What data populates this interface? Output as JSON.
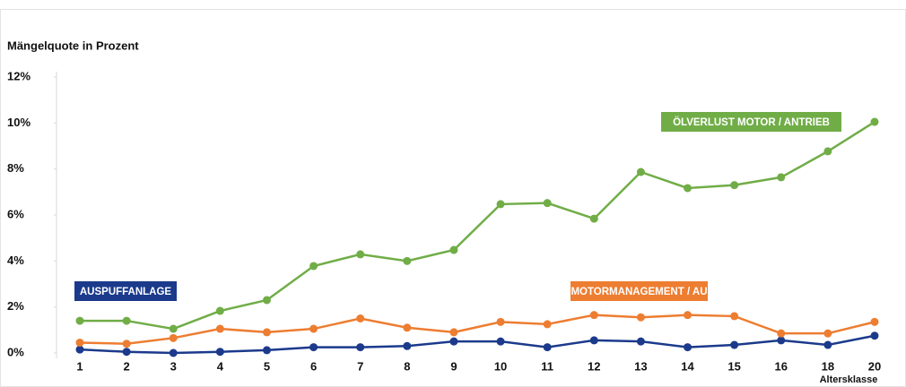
{
  "chart_data": {
    "type": "line",
    "title": "Mängelquote in Prozent",
    "x_label": "Altersklasse",
    "categories": [
      "1",
      "2",
      "3",
      "4",
      "5",
      "6",
      "7",
      "8",
      "9",
      "10",
      "11",
      "12",
      "13",
      "14",
      "15",
      "16",
      "18",
      "20"
    ],
    "ylim": [
      0,
      12
    ],
    "yticks": [
      {
        "value": 0,
        "label": "0%"
      },
      {
        "value": 2,
        "label": "2%"
      },
      {
        "value": 4,
        "label": "4%"
      },
      {
        "value": 6,
        "label": "6%"
      },
      {
        "value": 8,
        "label": "8%"
      },
      {
        "value": 10,
        "label": "10%"
      },
      {
        "value": 12,
        "label": "12%"
      }
    ],
    "grid": false,
    "series": [
      {
        "name": "AUSPUFFANLAGE",
        "color": "#1b3a8c",
        "values": [
          0.15,
          0.05,
          0.0,
          0.05,
          0.12,
          0.25,
          0.25,
          0.3,
          0.5,
          0.5,
          0.25,
          0.55,
          0.5,
          0.25,
          0.35,
          0.55,
          0.35,
          0.75
        ]
      },
      {
        "name": "MOTORMANAGEMENT / AU",
        "color": "#ed7d31",
        "values": [
          0.45,
          0.4,
          0.65,
          1.05,
          0.9,
          1.05,
          1.5,
          1.1,
          0.9,
          1.35,
          1.25,
          1.65,
          1.55,
          1.65,
          1.6,
          0.85,
          0.85,
          1.35
        ]
      },
      {
        "name": "ÖLVERLUST MOTOR / ANTRIEB",
        "color": "#70ad47",
        "values": [
          1.4,
          1.4,
          1.05,
          1.83,
          2.3,
          3.78,
          4.29,
          4.0,
          4.48,
          6.47,
          6.52,
          5.84,
          7.87,
          7.17,
          7.3,
          7.64,
          8.77,
          10.05
        ]
      }
    ]
  }
}
